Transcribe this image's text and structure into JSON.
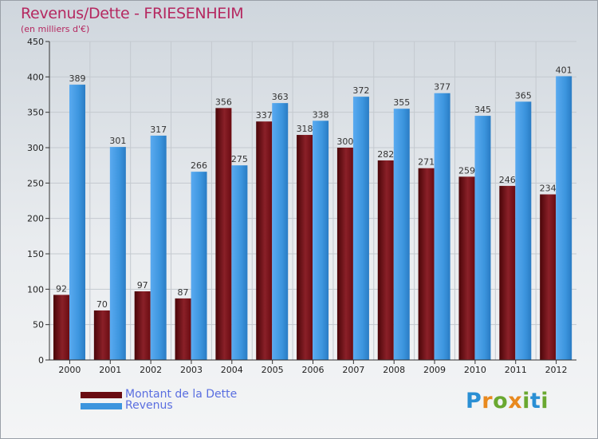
{
  "header": {
    "title": "Revenus/Dette - FRIESENHEIM",
    "subtitle": "(en milliers d'€)"
  },
  "legend": {
    "items": [
      {
        "label": "Montant de la Dette",
        "color": "#7a0f14"
      },
      {
        "label": "Revenus",
        "color": "#3c95de"
      }
    ]
  },
  "brand": {
    "text": "Proxiti",
    "letter_colors": [
      "#2a8fd4",
      "#e8891e",
      "#6aa830",
      "#e8891e",
      "#6aa830",
      "#2a8fd4",
      "#6aa830"
    ]
  },
  "chart_data": {
    "type": "bar",
    "title": "Revenus/Dette - FRIESENHEIM",
    "subtitle": "(en milliers d'€)",
    "categories": [
      "2000",
      "2001",
      "2002",
      "2003",
      "2004",
      "2005",
      "2006",
      "2007",
      "2008",
      "2009",
      "2010",
      "2011",
      "2012"
    ],
    "series": [
      {
        "name": "Montant de la Dette",
        "color": "#7a0f14",
        "values": [
          92,
          70,
          97,
          87,
          356,
          337,
          318,
          300,
          282,
          271,
          259,
          246,
          234
        ]
      },
      {
        "name": "Revenus",
        "color": "#3c95de",
        "values": [
          389,
          301,
          317,
          266,
          275,
          363,
          338,
          372,
          355,
          377,
          345,
          365,
          401
        ]
      }
    ],
    "ylim": [
      0,
      450
    ],
    "yticks": [
      0,
      50,
      100,
      150,
      200,
      250,
      300,
      350,
      400,
      450
    ],
    "grid": true,
    "legend_position": "bottom-left"
  }
}
